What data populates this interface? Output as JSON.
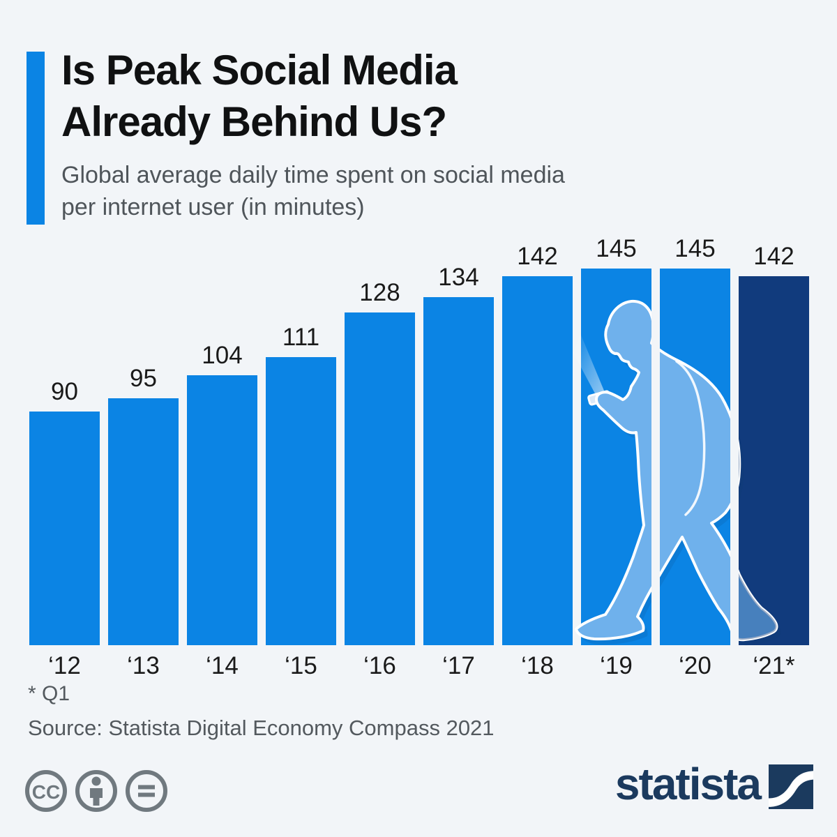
{
  "header": {
    "title_line1": "Is Peak Social Media",
    "title_line2": "Already Behind Us?",
    "subtitle_line1": "Global average daily time spent on social media",
    "subtitle_line2": "per internet user (in minutes)"
  },
  "chart_data": {
    "type": "bar",
    "title": "Is Peak Social Media Already Behind Us?",
    "subtitle": "Global average daily time spent on social media per internet user (in minutes)",
    "categories": [
      "‘12",
      "‘13",
      "‘14",
      "‘15",
      "‘16",
      "‘17",
      "‘18",
      "‘19",
      "‘20",
      "‘21*"
    ],
    "values": [
      90,
      95,
      104,
      111,
      128,
      134,
      142,
      145,
      145,
      142
    ],
    "unit": "minutes",
    "ylim": [
      0,
      145
    ],
    "value_labels": true,
    "grid": false,
    "legend": false,
    "bar_color": "#0b84e4",
    "last_bar_color": "#113b7d",
    "illustration": "pedestrian looking down at smartphone, light-blue silhouette over the 2019-2021 bars"
  },
  "colors": {
    "background": "#f2f5f8",
    "accent_blue": "#0b84e4",
    "dark_navy": "#113b7d",
    "silhouette_blue": "#6fb1ec",
    "text_dark": "#1a1a1a",
    "text_grey": "#53595e",
    "brand_navy": "#1b3a5e",
    "icon_grey": "#70797f"
  },
  "footer": {
    "footnote": "* Q1",
    "source": "Source: Statista Digital Economy Compass 2021",
    "license": [
      "cc",
      "by",
      "nd"
    ],
    "brand": "statista"
  }
}
